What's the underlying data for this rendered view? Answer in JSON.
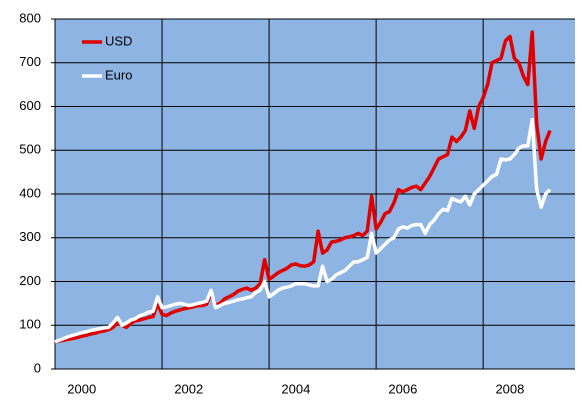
{
  "chart_data": {
    "type": "line",
    "categories": [
      null,
      null,
      null,
      null,
      null,
      null,
      "2000",
      null,
      null,
      null,
      null,
      null,
      null,
      null,
      null,
      null,
      null,
      null,
      null,
      null,
      null,
      null,
      null,
      null,
      null,
      null,
      null,
      null,
      null,
      null,
      "2002",
      null,
      null,
      null,
      null,
      null,
      null,
      null,
      null,
      null,
      null,
      null,
      null,
      null,
      null,
      null,
      null,
      null,
      null,
      null,
      null,
      null,
      null,
      null,
      "2004",
      null,
      null,
      null,
      null,
      null,
      null,
      null,
      null,
      null,
      null,
      null,
      null,
      null,
      null,
      null,
      null,
      null,
      null,
      null,
      null,
      null,
      null,
      null,
      "2006",
      null,
      null,
      null,
      null,
      null,
      null,
      null,
      null,
      null,
      null,
      null,
      null,
      null,
      null,
      null,
      null,
      null,
      null,
      null,
      null,
      null,
      null,
      null,
      "2008",
      null,
      null,
      null,
      null,
      null,
      null,
      null,
      null,
      null
    ],
    "series": [
      {
        "name": "USD",
        "color": "#e00000",
        "values": [
          62,
          64,
          66,
          68,
          70,
          72,
          75,
          77,
          80,
          82,
          85,
          87,
          90,
          95,
          105,
          100,
          95,
          105,
          110,
          112,
          115,
          118,
          120,
          150,
          125,
          122,
          128,
          132,
          135,
          138,
          140,
          142,
          145,
          145,
          148,
          175,
          145,
          150,
          160,
          165,
          170,
          178,
          182,
          185,
          180,
          185,
          195,
          250,
          205,
          212,
          220,
          225,
          230,
          238,
          240,
          236,
          235,
          238,
          245,
          315,
          265,
          272,
          290,
          292,
          295,
          300,
          302,
          305,
          310,
          305,
          315,
          395,
          320,
          335,
          355,
          360,
          380,
          410,
          405,
          410,
          415,
          418,
          410,
          425,
          440,
          460,
          480,
          485,
          490,
          530,
          520,
          530,
          545,
          590,
          550,
          600,
          620,
          650,
          700,
          705,
          710,
          750,
          760,
          710,
          700,
          670,
          650,
          770,
          560,
          480,
          520,
          545
        ]
      },
      {
        "name": "Euro",
        "color": "#ffffff",
        "values": [
          62,
          66,
          70,
          74,
          77,
          80,
          83,
          85,
          88,
          90,
          92,
          94,
          95,
          105,
          118,
          100,
          105,
          112,
          115,
          122,
          125,
          130,
          132,
          165,
          140,
          142,
          145,
          148,
          150,
          148,
          145,
          147,
          150,
          152,
          155,
          180,
          140,
          145,
          150,
          152,
          155,
          158,
          160,
          163,
          165,
          175,
          180,
          200,
          165,
          172,
          180,
          185,
          187,
          190,
          195,
          195,
          195,
          192,
          190,
          190,
          235,
          200,
          205,
          215,
          220,
          225,
          235,
          245,
          245,
          250,
          255,
          310,
          265,
          275,
          285,
          295,
          300,
          320,
          325,
          322,
          328,
          330,
          330,
          310,
          330,
          340,
          355,
          365,
          362,
          390,
          385,
          382,
          395,
          375,
          400,
          410,
          420,
          430,
          440,
          445,
          480,
          478,
          480,
          490,
          505,
          510,
          510,
          570,
          410,
          370,
          400,
          410
        ]
      }
    ],
    "ylim": [
      0,
      800
    ],
    "yticks": [
      0,
      100,
      200,
      300,
      400,
      500,
      600,
      700,
      800
    ],
    "grid": true,
    "background": "#8db4e2",
    "legend": "top-left"
  }
}
